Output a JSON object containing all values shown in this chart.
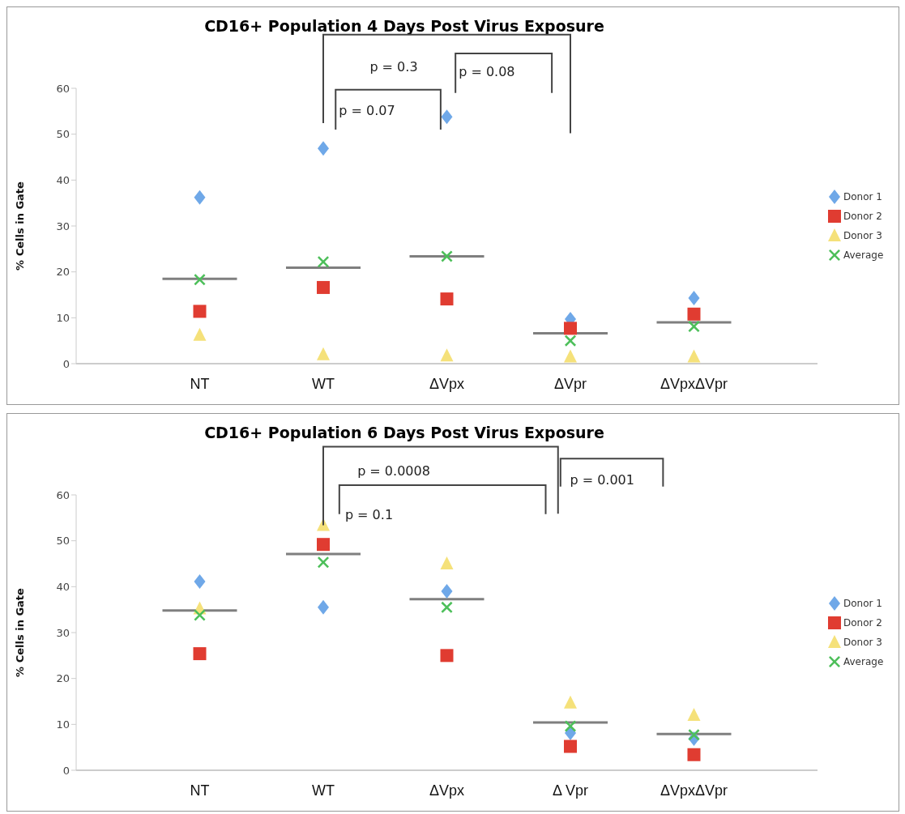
{
  "chart_data": [
    {
      "type": "scatter",
      "title": "CD16+ Population 4 Days Post Virus Exposure",
      "ylabel": "% Cells in Gate",
      "categories": [
        "NT",
        "WT",
        "ΔVpx",
        "ΔVpr",
        "ΔVpxΔVpr"
      ],
      "ylim": [
        0,
        60
      ],
      "yticks": [
        0,
        10,
        20,
        30,
        40,
        50,
        60
      ],
      "legend": "right",
      "series": [
        {
          "name": "Donor 1",
          "color": "#6fa8e8",
          "marker": "diamond",
          "values": [
            36.2,
            46.9,
            53.8,
            9.7,
            14.3
          ]
        },
        {
          "name": "Donor 2",
          "color": "#e03c31",
          "marker": "square",
          "values": [
            11.4,
            16.6,
            14.1,
            7.7,
            10.8
          ]
        },
        {
          "name": "Donor 3",
          "color": "#f5e17a",
          "marker": "triangle",
          "values": [
            6.2,
            2,
            1.7,
            1.5,
            1.5
          ]
        },
        {
          "name": "Average",
          "color": "#4dbf5a",
          "marker": "cross",
          "values": [
            18.3,
            22.2,
            23.4,
            5,
            8.1
          ]
        },
        {
          "type": "box",
          "color": "#7f7f7f",
          "boxes": [
            {
              "low": 18.5,
              "q1": 18.5,
              "median": 18.5,
              "q3": 18.5,
              "high": 18.5
            },
            {
              "low": 20.9,
              "q1": 20.9,
              "median": 20.9,
              "q3": 20.9,
              "high": 20.9
            },
            {
              "low": 23.4,
              "q1": 23.4,
              "median": 23.4,
              "q3": 23.4,
              "high": 23.4
            },
            {
              "low": 6.6,
              "q1": 6.6,
              "median": 6.6,
              "q3": 6.6,
              "high": 6.6
            },
            {
              "low": 9,
              "q1": 9,
              "median": 9,
              "q3": 9,
              "high": 9
            }
          ]
        }
      ],
      "annotations": [
        "p = 0.3",
        "p = 0.07",
        "p = 0.08"
      ]
    },
    {
      "type": "scatter",
      "title": "CD16+ Population 6 Days Post Virus Exposure",
      "ylabel": "% Cells in Gate",
      "categories": [
        "NT",
        "WT",
        "ΔVpx",
        "Δ Vpr",
        "ΔVpxΔVpr"
      ],
      "ylim": [
        0,
        60
      ],
      "yticks": [
        0,
        10,
        20,
        30,
        40,
        50,
        60
      ],
      "legend": "right",
      "series": [
        {
          "name": "Donor 1",
          "color": "#6fa8e8",
          "marker": "diamond",
          "values": [
            41.1,
            35.5,
            39,
            8.1,
            6.9
          ]
        },
        {
          "name": "Donor 2",
          "color": "#e03c31",
          "marker": "square",
          "values": [
            25.4,
            49.2,
            25,
            5.2,
            3.4
          ]
        },
        {
          "name": "Donor 3",
          "color": "#f5e17a",
          "marker": "triangle",
          "values": [
            35.2,
            53.4,
            45,
            14.7,
            12
          ]
        },
        {
          "name": "Average",
          "color": "#4dbf5a",
          "marker": "cross",
          "values": [
            33.8,
            45.3,
            35.5,
            9.6,
            7.7
          ]
        },
        {
          "type": "box",
          "color": "#7f7f7f",
          "boxes": [
            {
              "low": 34.8,
              "q1": 34.8,
              "median": 34.8,
              "q3": 34.8,
              "high": 34.8
            },
            {
              "low": 47.1,
              "q1": 47.1,
              "median": 47.1,
              "q3": 47.1,
              "high": 47.1
            },
            {
              "low": 37.3,
              "q1": 37.3,
              "median": 37.3,
              "q3": 37.3,
              "high": 37.3
            },
            {
              "low": 10.4,
              "q1": 10.4,
              "median": 10.4,
              "q3": 10.4,
              "high": 10.4
            },
            {
              "low": 7.9,
              "q1": 7.9,
              "median": 7.9,
              "q3": 7.9,
              "high": 7.9
            }
          ]
        }
      ],
      "annotations": [
        "p = 0.0008",
        "p = 0.1",
        "p = 0.001"
      ]
    }
  ]
}
